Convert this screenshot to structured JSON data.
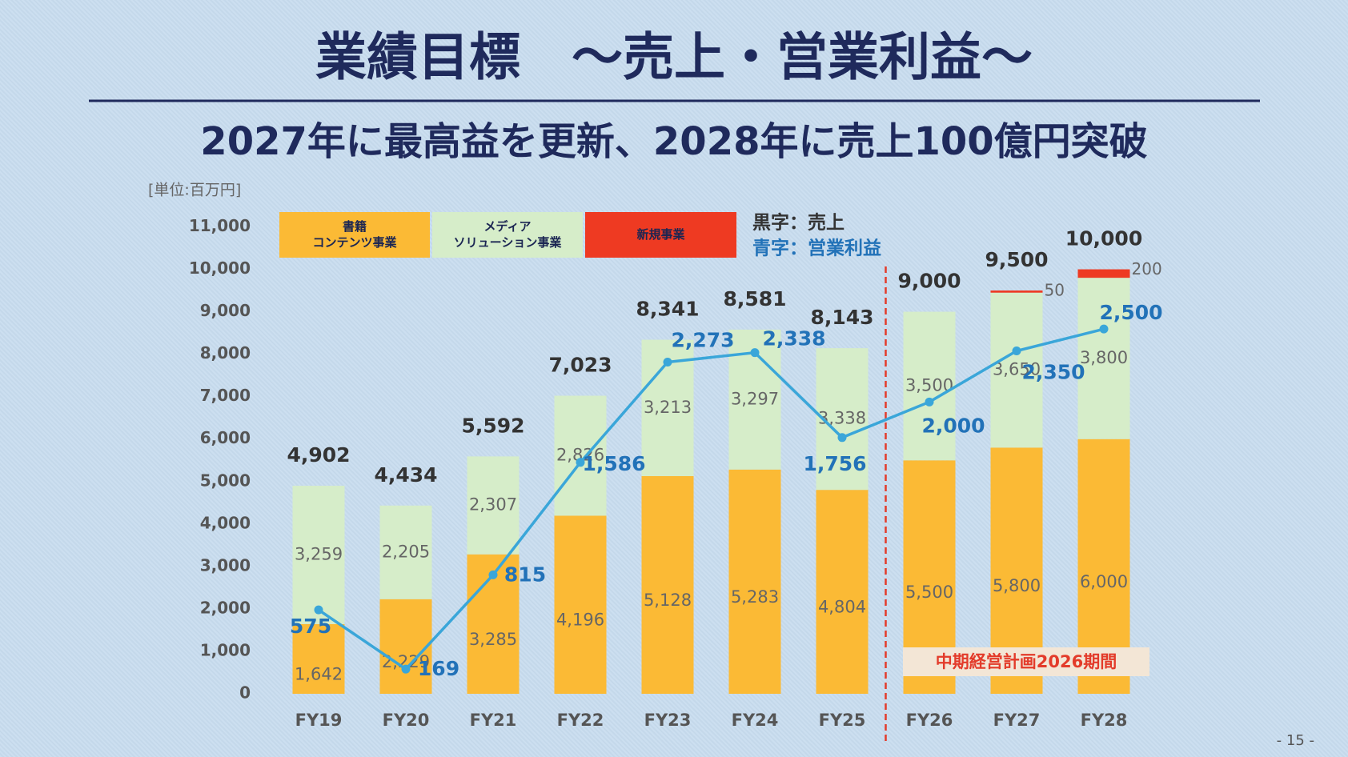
{
  "title": "業績目標　～売上・営業利益～",
  "subtitle": "2027年に最高益を更新、2028年に売上100億円突破",
  "page_number": "- 15 -",
  "chart_data": {
    "type": "bar",
    "stacked": true,
    "unit_label": "[単位:百万円]",
    "categories": [
      "FY19",
      "FY20",
      "FY21",
      "FY22",
      "FY23",
      "FY24",
      "FY25",
      "FY26",
      "FY27",
      "FY28"
    ],
    "series": [
      {
        "name": "書籍\nコンテンツ事業",
        "color": "#FBBA35",
        "values": [
          1642,
          2229,
          3285,
          4196,
          5128,
          5283,
          4804,
          5500,
          5800,
          6000
        ],
        "value_labels": [
          "1,642",
          "2,229",
          "3,285",
          "4,196",
          "5,128",
          "5,283",
          "4,804",
          "5,500",
          "5,800",
          "6,000"
        ]
      },
      {
        "name": "メディア\nソリューション事業",
        "color": "#D6EDC9",
        "values": [
          3259,
          2205,
          2307,
          2826,
          3213,
          3297,
          3338,
          3500,
          3650,
          3800
        ],
        "value_labels": [
          "3,259",
          "2,205",
          "2,307",
          "2,826",
          "3,213",
          "3,297",
          "3,338",
          "3,500",
          "3,650",
          "3,800"
        ]
      },
      {
        "name": "新規事業",
        "color": "#EE3A22",
        "values": [
          null,
          null,
          null,
          null,
          null,
          null,
          null,
          null,
          50,
          200
        ]
      }
    ],
    "totals": {
      "name": "黒字：売上",
      "color": "#333333",
      "values": [
        4902,
        4434,
        5592,
        7023,
        8341,
        8581,
        8143,
        9000,
        9500,
        10000
      ],
      "value_labels": [
        "4,902",
        "4,434",
        "5,592",
        "7,023",
        "8,341",
        "8,581",
        "8,143",
        "9,000",
        "9,500",
        "10,000"
      ]
    },
    "line": {
      "type": "line",
      "name": "青字：営業利益",
      "color": "#3AA6D9",
      "label_color": "#2272B8",
      "axis": "y2",
      "values": [
        575,
        169,
        815,
        1586,
        2273,
        2338,
        1756,
        2000,
        2350,
        2500
      ],
      "value_labels": [
        "575",
        "169",
        "815",
        "1,586",
        "2,273",
        "2,338",
        "1,756",
        "2,000",
        "2,350",
        "2,500"
      ]
    },
    "annotation": "中期経営計画2026期間",
    "ylim": [
      0,
      11000
    ],
    "yticks": [
      0,
      {
        "value": 1000,
        "label": "1,000"
      },
      {
        "value": 2000,
        "label": "2,000"
      },
      {
        "value": 3000,
        "label": "3,000"
      },
      {
        "value": 4000,
        "label": "4,000"
      },
      {
        "value": 5000,
        "label": "5,000"
      },
      {
        "value": 6000,
        "label": "6,000"
      },
      {
        "value": 7000,
        "label": "7,000"
      },
      {
        "value": 8000,
        "label": "8,000"
      },
      {
        "value": 9000,
        "label": "9,000"
      },
      {
        "value": 10000,
        "label": "10,000"
      },
      {
        "value": 11000,
        "label": "11,000"
      }
    ],
    "y2lim": [
      0,
      3200
    ],
    "grid": false
  }
}
